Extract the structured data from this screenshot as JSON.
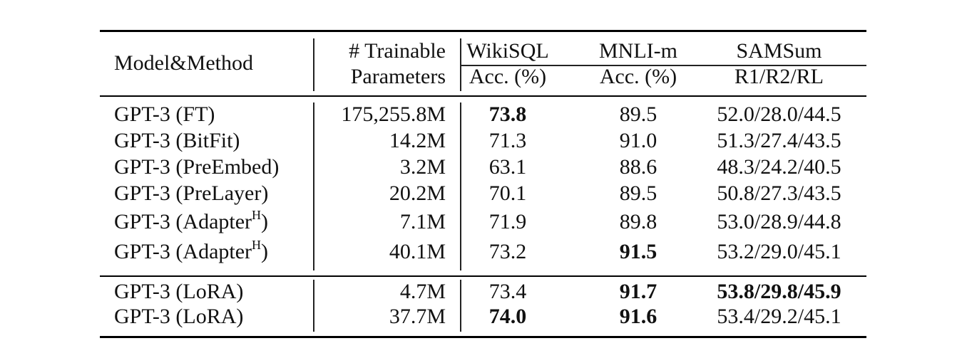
{
  "header": {
    "model_method": "Model&Method",
    "trainable_line1": "# Trainable",
    "trainable_line2": "Parameters",
    "wikisql": "WikiSQL",
    "wikisql_sub": "Acc. (%)",
    "mnli": "MNLI-m",
    "mnli_sub": "Acc. (%)",
    "samsum": "SAMSum",
    "samsum_sub": "R1/R2/RL"
  },
  "rows": [
    {
      "model": "GPT-3 (FT)",
      "params": "175,255.8M",
      "wikisql": "73.8",
      "mnli": "89.5",
      "samsum": "52.0/28.0/44.5"
    },
    {
      "model": "GPT-3 (BitFit)",
      "params": "14.2M",
      "wikisql": "71.3",
      "mnli": "91.0",
      "samsum": "51.3/27.4/43.5"
    },
    {
      "model": "GPT-3 (PreEmbed)",
      "params": "3.2M",
      "wikisql": "63.1",
      "mnli": "88.6",
      "samsum": "48.3/24.2/40.5"
    },
    {
      "model": "GPT-3 (PreLayer)",
      "params": "20.2M",
      "wikisql": "70.1",
      "mnli": "89.5",
      "samsum": "50.8/27.3/43.5"
    },
    {
      "model_prefix": "GPT-3 (Adapter",
      "model_sup": "H",
      "model_suffix": ")",
      "params": "7.1M",
      "wikisql": "71.9",
      "mnli": "89.8",
      "samsum": "53.0/28.9/44.8"
    },
    {
      "model_prefix": "GPT-3 (Adapter",
      "model_sup": "H",
      "model_suffix": ")",
      "params": "40.1M",
      "wikisql": "73.2",
      "mnli": "91.5",
      "samsum": "53.2/29.0/45.1"
    },
    {
      "model": "GPT-3 (LoRA)",
      "params": "4.7M",
      "wikisql": "73.4",
      "mnli": "91.7",
      "samsum": "53.8/29.8/45.9"
    },
    {
      "model": "GPT-3 (LoRA)",
      "params": "37.7M",
      "wikisql": "74.0",
      "mnli": "91.6",
      "samsum": "53.4/29.2/45.1"
    }
  ]
}
